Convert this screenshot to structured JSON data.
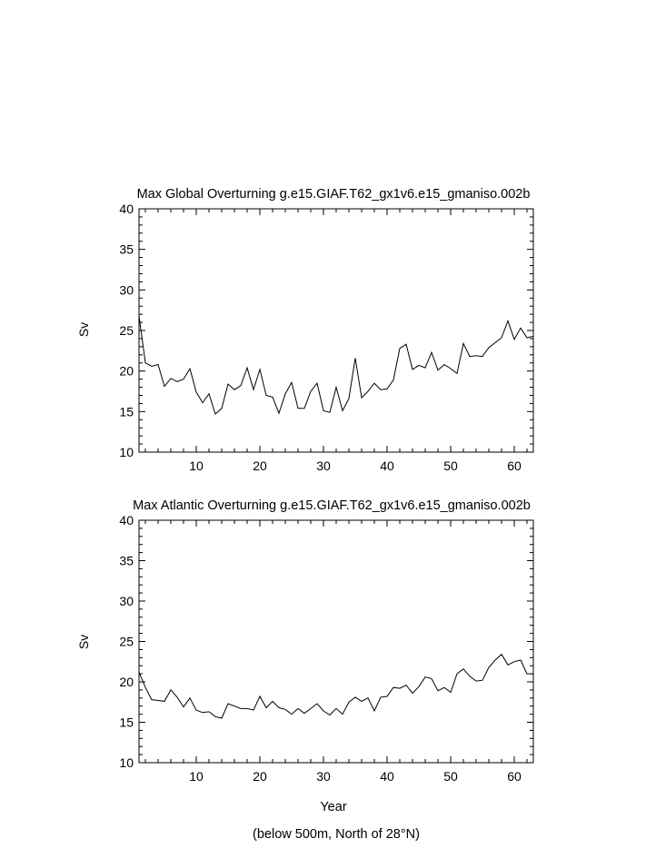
{
  "footer": "(below 500m, North of 28°N)",
  "chart_data": [
    {
      "type": "line",
      "title": "Max Global Overturning g.e15.GIAF.T62_gx1v6.e15_gmaniso.002b",
      "xlabel": "",
      "ylabel": "Sv",
      "xlim": [
        1,
        63
      ],
      "ylim": [
        10,
        40
      ],
      "xticks": [
        10,
        20,
        30,
        40,
        50,
        60
      ],
      "yticks": [
        10,
        15,
        20,
        25,
        30,
        35,
        40
      ],
      "grid": false,
      "x": [
        1,
        2,
        3,
        4,
        5,
        6,
        7,
        8,
        9,
        10,
        11,
        12,
        13,
        14,
        15,
        16,
        17,
        18,
        19,
        20,
        21,
        22,
        23,
        24,
        25,
        26,
        27,
        28,
        29,
        30,
        31,
        32,
        33,
        34,
        35,
        36,
        37,
        38,
        39,
        40,
        41,
        42,
        43,
        44,
        45,
        46,
        47,
        48,
        49,
        50,
        51,
        52,
        53,
        54,
        55,
        56,
        57,
        58,
        59,
        60,
        61,
        62,
        63
      ],
      "y": [
        26.8,
        21.0,
        20.6,
        20.8,
        18.1,
        19.1,
        18.7,
        19.0,
        20.3,
        17.4,
        16.1,
        17.2,
        14.7,
        15.4,
        18.4,
        17.7,
        18.2,
        20.4,
        17.7,
        20.2,
        17.0,
        16.8,
        14.8,
        17.2,
        18.6,
        15.4,
        15.4,
        17.5,
        18.5,
        15.1,
        14.9,
        18.0,
        15.1,
        16.6,
        21.6,
        16.7,
        17.5,
        18.5,
        17.7,
        17.8,
        18.9,
        22.8,
        23.3,
        20.2,
        20.7,
        20.4,
        22.3,
        20.1,
        20.8,
        20.3,
        19.7,
        23.4,
        21.8,
        21.9,
        21.8,
        22.9,
        23.5,
        24.1,
        26.2,
        23.9,
        25.3,
        24.1,
        24.3
      ]
    },
    {
      "type": "line",
      "title": "Max Atlantic Overturning g.e15.GIAF.T62_gx1v6.e15_gmaniso.002b",
      "xlabel": "Year",
      "ylabel": "Sv",
      "xlim": [
        1,
        63
      ],
      "ylim": [
        10,
        40
      ],
      "xticks": [
        10,
        20,
        30,
        40,
        50,
        60
      ],
      "yticks": [
        10,
        15,
        20,
        25,
        30,
        35,
        40
      ],
      "grid": false,
      "x": [
        1,
        2,
        3,
        4,
        5,
        6,
        7,
        8,
        9,
        10,
        11,
        12,
        13,
        14,
        15,
        16,
        17,
        18,
        19,
        20,
        21,
        22,
        23,
        24,
        25,
        26,
        27,
        28,
        29,
        30,
        31,
        32,
        33,
        34,
        35,
        36,
        37,
        38,
        39,
        40,
        41,
        42,
        43,
        44,
        45,
        46,
        47,
        48,
        49,
        50,
        51,
        52,
        53,
        54,
        55,
        56,
        57,
        58,
        59,
        60,
        61,
        62,
        63
      ],
      "y": [
        21.2,
        19.3,
        17.8,
        17.7,
        17.6,
        19.0,
        18.1,
        16.9,
        18.0,
        16.5,
        16.2,
        16.3,
        15.7,
        15.5,
        17.3,
        17.0,
        16.7,
        16.7,
        16.5,
        18.2,
        16.8,
        17.6,
        16.8,
        16.6,
        16.0,
        16.7,
        16.1,
        16.7,
        17.3,
        16.4,
        15.9,
        16.7,
        16.0,
        17.5,
        18.1,
        17.6,
        18.0,
        16.4,
        18.1,
        18.2,
        19.3,
        19.2,
        19.6,
        18.6,
        19.4,
        20.6,
        20.4,
        18.9,
        19.3,
        18.7,
        21.0,
        21.6,
        20.7,
        20.1,
        20.2,
        21.8,
        22.7,
        23.4,
        22.1,
        22.5,
        22.7,
        21.0,
        21.0
      ]
    }
  ]
}
